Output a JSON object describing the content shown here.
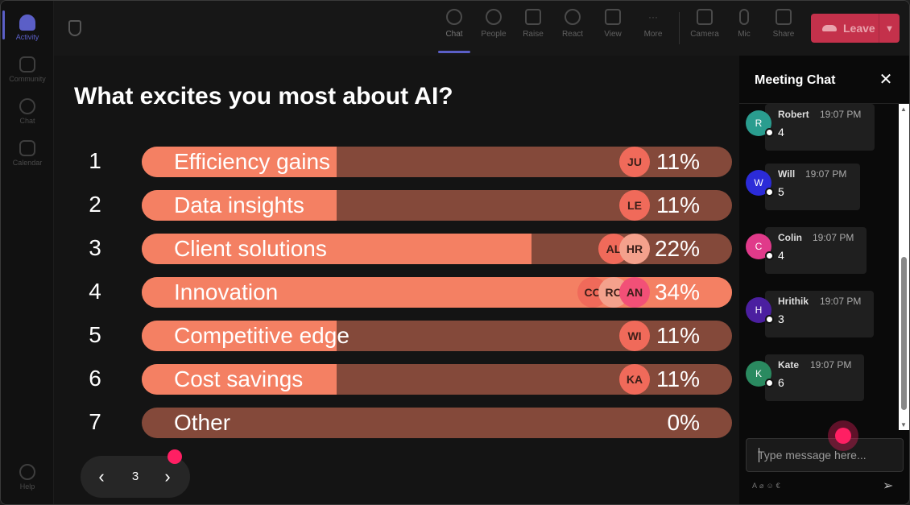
{
  "rail": {
    "items": [
      {
        "label": "Activity",
        "active": true
      },
      {
        "label": "Community",
        "active": false
      },
      {
        "label": "Chat",
        "active": false
      },
      {
        "label": "Calendar",
        "active": false
      },
      {
        "label": "Help",
        "active": false
      }
    ]
  },
  "toolbar": {
    "chat": "Chat",
    "people": "People",
    "raise": "Raise",
    "react": "React",
    "view": "View",
    "more": "More",
    "camera": "Camera",
    "mic": "Mic",
    "share": "Share",
    "leave": "Leave"
  },
  "poll": {
    "title": "What excites you most about AI?",
    "options": [
      {
        "num": "1",
        "label": "Efficiency gains",
        "percent": "11%",
        "fill": 0.33,
        "voters": [
          "JU"
        ]
      },
      {
        "num": "2",
        "label": "Data insights",
        "percent": "11%",
        "fill": 0.33,
        "voters": [
          "LE"
        ]
      },
      {
        "num": "3",
        "label": "Client solutions",
        "percent": "22%",
        "fill": 0.66,
        "voters": [
          "AL",
          "HR"
        ]
      },
      {
        "num": "4",
        "label": "Innovation",
        "percent": "34%",
        "fill": 1.0,
        "voters": [
          "CO",
          "RO",
          "AN"
        ]
      },
      {
        "num": "5",
        "label": "Competitive edge",
        "percent": "11%",
        "fill": 0.33,
        "voters": [
          "WI"
        ]
      },
      {
        "num": "6",
        "label": "Cost savings",
        "percent": "11%",
        "fill": 0.33,
        "voters": [
          "KA"
        ]
      },
      {
        "num": "7",
        "label": "Other",
        "percent": "0%",
        "fill": 0.0,
        "voters": []
      }
    ],
    "voter_colors": {
      "JU": "#f06a5a",
      "LE": "#f06a5a",
      "AL": "#f06a5a",
      "HR": "#f4a18c",
      "CO": "#f06a5a",
      "RO": "#f4a18c",
      "AN": "#f25077",
      "WI": "#f06a5a",
      "KA": "#f06a5a"
    }
  },
  "pager": {
    "page": "3"
  },
  "chat": {
    "title": "Meeting Chat",
    "messages": [
      {
        "initial": "R",
        "name": "Robert",
        "time": "19:07 PM",
        "text": "4",
        "color": "#2a9d8f"
      },
      {
        "initial": "W",
        "name": "Will",
        "time": "19:07 PM",
        "text": "5",
        "color": "#2b2bd8"
      },
      {
        "initial": "C",
        "name": "Colin",
        "time": "19:07 PM",
        "text": "4",
        "color": "#e03a8a"
      },
      {
        "initial": "H",
        "name": "Hrithik",
        "time": "19:07 PM",
        "text": "3",
        "color": "#4b1fa0"
      },
      {
        "initial": "K",
        "name": "Kate",
        "time": "19:07 PM",
        "text": "6",
        "color": "#2a8a60"
      }
    ],
    "compose_placeholder": "Type message here..."
  }
}
